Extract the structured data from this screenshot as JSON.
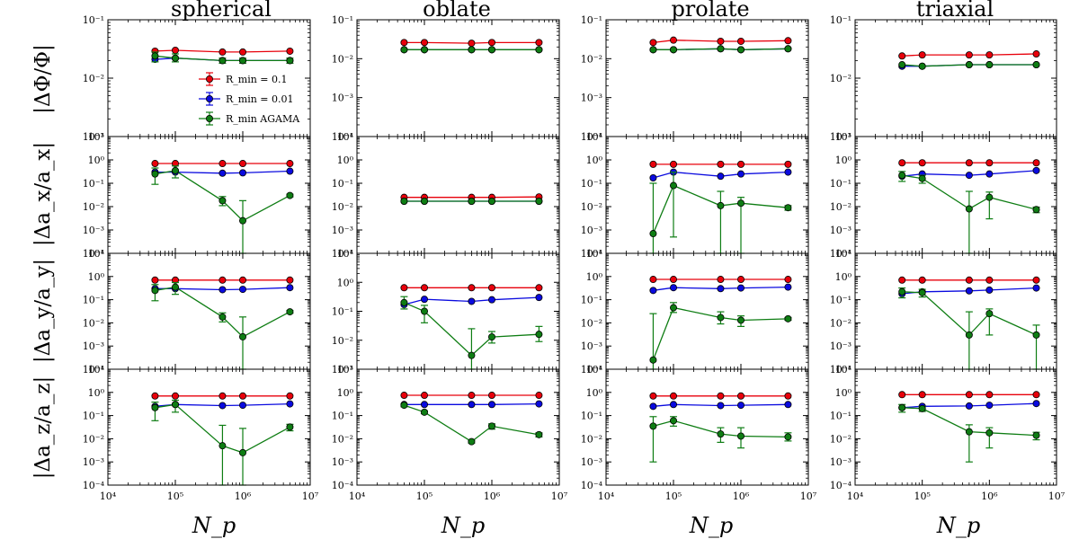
{
  "chart_data": {
    "type": "scatter",
    "columns": [
      "spherical",
      "oblate",
      "prolate",
      "triaxial"
    ],
    "row_labels": [
      "|ΔΦ/Φ|",
      "|Δa_x/a_x|",
      "|Δa_y/a_y|",
      "|Δa_z/a_z|"
    ],
    "xlabel": "N_p",
    "xscale": "log",
    "yscale": "log",
    "xlim": [
      10000,
      10000000
    ],
    "x": [
      50000,
      100000,
      500000,
      1000000,
      5000000
    ],
    "x_tick_labels": [
      "10^4",
      "10^5",
      "10^6",
      "10^7"
    ],
    "legend": [
      "R_min = 0.1",
      "R_min = 0.01",
      "R_min AGAMA"
    ],
    "series_colors": [
      "#e8000b",
      "#0a0adf",
      "#0e7d13"
    ],
    "panels": [
      [
        {
          "ylim_exp": [
            -3,
            -1
          ],
          "series": [
            {
              "name": "R_min = 0.1",
              "values": [
                0.029,
                0.03,
                0.028,
                0.028,
                0.029
              ]
            },
            {
              "name": "R_min = 0.01",
              "values": [
                0.021,
                0.022,
                0.02,
                0.02,
                0.02
              ]
            },
            {
              "name": "R_min AGAMA",
              "values": [
                0.024,
                0.022,
                0.02,
                0.02,
                0.02
              ],
              "err_low": [
                0.019,
                0.019,
                0.018,
                0.018,
                0.018
              ],
              "err_high": [
                0.028,
                0.026,
                0.022,
                0.022,
                0.022
              ]
            }
          ]
        },
        {
          "ylim_exp": [
            -4,
            -1
          ],
          "series": [
            {
              "name": "R_min = 0.1",
              "values": [
                0.026,
                0.026,
                0.025,
                0.026,
                0.026
              ]
            },
            {
              "name": "R_min = 0.01",
              "values": [
                0.017,
                0.017,
                0.017,
                0.017,
                0.017
              ]
            },
            {
              "name": "R_min AGAMA",
              "values": [
                0.017,
                0.017,
                0.017,
                0.017,
                0.017
              ]
            }
          ]
        },
        {
          "ylim_exp": [
            -4,
            -1
          ],
          "series": [
            {
              "name": "R_min = 0.1",
              "values": [
                0.026,
                0.03,
                0.028,
                0.028,
                0.029
              ]
            },
            {
              "name": "R_min = 0.01",
              "values": [
                0.017,
                0.017,
                0.018,
                0.017,
                0.018
              ]
            },
            {
              "name": "R_min AGAMA",
              "values": [
                0.017,
                0.017,
                0.018,
                0.017,
                0.018
              ]
            }
          ]
        },
        {
          "ylim_exp": [
            -3,
            -1
          ],
          "series": [
            {
              "name": "R_min = 0.1",
              "values": [
                0.024,
                0.025,
                0.025,
                0.025,
                0.026
              ]
            },
            {
              "name": "R_min = 0.01",
              "values": [
                0.016,
                0.016,
                0.017,
                0.017,
                0.017
              ]
            },
            {
              "name": "R_min AGAMA",
              "values": [
                0.017,
                0.016,
                0.017,
                0.017,
                0.017
              ]
            }
          ]
        }
      ],
      [
        {
          "ylim_exp": [
            -4,
            1
          ],
          "series": [
            {
              "name": "R_min = 0.1",
              "values": [
                0.7,
                0.7,
                0.7,
                0.7,
                0.7
              ]
            },
            {
              "name": "R_min = 0.01",
              "values": [
                0.3,
                0.3,
                0.27,
                0.28,
                0.33
              ]
            },
            {
              "name": "R_min AGAMA",
              "values": [
                0.25,
                0.35,
                0.018,
                0.0025,
                0.03
              ],
              "err_low": [
                0.09,
                0.17,
                0.011,
                0.0001,
                0.026
              ],
              "err_high": [
                0.45,
                0.55,
                0.027,
                0.018,
                0.034
              ]
            }
          ]
        },
        {
          "ylim_exp": [
            -4,
            1
          ],
          "series": [
            {
              "name": "R_min = 0.1",
              "values": [
                0.025,
                0.025,
                0.025,
                0.025,
                0.026
              ]
            },
            {
              "name": "R_min = 0.01",
              "values": [
                0.017,
                0.017,
                0.017,
                0.017,
                0.017
              ]
            },
            {
              "name": "R_min AGAMA",
              "values": [
                0.017,
                0.017,
                0.017,
                0.017,
                0.017
              ]
            }
          ]
        },
        {
          "ylim_exp": [
            -4,
            1
          ],
          "series": [
            {
              "name": "R_min = 0.1",
              "values": [
                0.65,
                0.65,
                0.65,
                0.65,
                0.65
              ]
            },
            {
              "name": "R_min = 0.01",
              "values": [
                0.17,
                0.3,
                0.2,
                0.25,
                0.3
              ]
            },
            {
              "name": "R_min AGAMA",
              "values": [
                0.0007,
                0.08,
                0.011,
                0.014,
                0.009
              ],
              "err_low": [
                0.0001,
                0.0005,
                0.0001,
                0.0001,
                0.007
              ],
              "err_high": [
                0.1,
                0.3,
                0.045,
                0.025,
                0.011
              ]
            }
          ]
        },
        {
          "ylim_exp": [
            -4,
            1
          ],
          "series": [
            {
              "name": "R_min = 0.1",
              "values": [
                0.75,
                0.75,
                0.75,
                0.75,
                0.75
              ]
            },
            {
              "name": "R_min = 0.01",
              "values": [
                0.2,
                0.25,
                0.22,
                0.25,
                0.35
              ]
            },
            {
              "name": "R_min AGAMA",
              "values": [
                0.22,
                0.16,
                0.008,
                0.025,
                0.0075
              ],
              "err_low": [
                0.12,
                0.1,
                0.0001,
                0.003,
                0.0055
              ],
              "err_high": [
                0.32,
                0.22,
                0.045,
                0.042,
                0.0095
              ]
            }
          ]
        }
      ],
      [
        {
          "ylim_exp": [
            -4,
            1
          ],
          "series": [
            {
              "name": "R_min = 0.1",
              "values": [
                0.7,
                0.7,
                0.7,
                0.7,
                0.7
              ]
            },
            {
              "name": "R_min = 0.01",
              "values": [
                0.3,
                0.3,
                0.27,
                0.28,
                0.33
              ]
            },
            {
              "name": "R_min AGAMA",
              "values": [
                0.25,
                0.35,
                0.018,
                0.0025,
                0.03
              ],
              "err_low": [
                0.09,
                0.17,
                0.011,
                0.0001,
                0.026
              ],
              "err_high": [
                0.45,
                0.55,
                0.027,
                0.018,
                0.034
              ]
            }
          ]
        },
        {
          "ylim_exp": [
            -3,
            1
          ],
          "series": [
            {
              "name": "R_min = 0.1",
              "values": [
                0.65,
                0.65,
                0.65,
                0.65,
                0.65
              ]
            },
            {
              "name": "R_min = 0.01",
              "values": [
                0.17,
                0.26,
                0.22,
                0.25,
                0.3
              ]
            },
            {
              "name": "R_min AGAMA",
              "values": [
                0.2,
                0.1,
                0.003,
                0.013,
                0.016
              ],
              "err_low": [
                0.12,
                0.04,
                0.0001,
                0.008,
                0.009
              ],
              "err_high": [
                0.32,
                0.16,
                0.025,
                0.02,
                0.03
              ]
            }
          ]
        },
        {
          "ylim_exp": [
            -4,
            1
          ],
          "series": [
            {
              "name": "R_min = 0.1",
              "values": [
                0.75,
                0.75,
                0.75,
                0.75,
                0.75
              ]
            },
            {
              "name": "R_min = 0.01",
              "values": [
                0.25,
                0.33,
                0.3,
                0.32,
                0.35
              ]
            },
            {
              "name": "R_min AGAMA",
              "values": [
                0.00025,
                0.045,
                0.017,
                0.013,
                0.015
              ],
              "err_low": [
                0.0001,
                0.028,
                0.009,
                0.007,
                0.013
              ],
              "err_high": [
                0.025,
                0.075,
                0.03,
                0.02,
                0.017
              ]
            }
          ]
        },
        {
          "ylim_exp": [
            -4,
            1
          ],
          "series": [
            {
              "name": "R_min = 0.1",
              "values": [
                0.7,
                0.7,
                0.7,
                0.7,
                0.7
              ]
            },
            {
              "name": "R_min = 0.01",
              "values": [
                0.18,
                0.22,
                0.24,
                0.26,
                0.32
              ]
            },
            {
              "name": "R_min AGAMA",
              "values": [
                0.22,
                0.2,
                0.003,
                0.025,
                0.003
              ],
              "err_low": [
                0.12,
                0.13,
                0.0001,
                0.003,
                0.0001
              ],
              "err_high": [
                0.32,
                0.28,
                0.03,
                0.04,
                0.008
              ]
            }
          ]
        }
      ],
      [
        {
          "ylim_exp": [
            -4,
            1
          ],
          "series": [
            {
              "name": "R_min = 0.1",
              "values": [
                0.7,
                0.7,
                0.7,
                0.7,
                0.7
              ]
            },
            {
              "name": "R_min = 0.01",
              "values": [
                0.25,
                0.3,
                0.27,
                0.28,
                0.32
              ]
            },
            {
              "name": "R_min AGAMA",
              "values": [
                0.22,
                0.3,
                0.005,
                0.0025,
                0.032
              ],
              "err_low": [
                0.06,
                0.14,
                0.0001,
                0.0001,
                0.022
              ],
              "err_high": [
                0.38,
                0.46,
                0.038,
                0.028,
                0.042
              ]
            }
          ]
        },
        {
          "ylim_exp": [
            -4,
            1
          ],
          "series": [
            {
              "name": "R_min = 0.1",
              "values": [
                0.75,
                0.75,
                0.75,
                0.75,
                0.75
              ]
            },
            {
              "name": "R_min = 0.01",
              "values": [
                0.3,
                0.3,
                0.3,
                0.3,
                0.32
              ]
            },
            {
              "name": "R_min AGAMA",
              "values": [
                0.28,
                0.14,
                0.0075,
                0.035,
                0.015
              ],
              "err_low": [
                0.24,
                0.12,
                0.0065,
                0.026,
                0.012
              ],
              "err_high": [
                0.32,
                0.16,
                0.0085,
                0.044,
                0.018
              ]
            }
          ]
        },
        {
          "ylim_exp": [
            -4,
            1
          ],
          "series": [
            {
              "name": "R_min = 0.1",
              "values": [
                0.7,
                0.7,
                0.7,
                0.7,
                0.7
              ]
            },
            {
              "name": "R_min = 0.01",
              "values": [
                0.25,
                0.3,
                0.27,
                0.28,
                0.3
              ]
            },
            {
              "name": "R_min AGAMA",
              "values": [
                0.035,
                0.06,
                0.016,
                0.013,
                0.012
              ],
              "err_low": [
                0.001,
                0.035,
                0.007,
                0.004,
                0.008
              ],
              "err_high": [
                0.09,
                0.09,
                0.03,
                0.03,
                0.018
              ]
            }
          ]
        },
        {
          "ylim_exp": [
            -4,
            1
          ],
          "series": [
            {
              "name": "R_min = 0.1",
              "values": [
                0.8,
                0.8,
                0.8,
                0.8,
                0.8
              ]
            },
            {
              "name": "R_min = 0.01",
              "values": [
                0.22,
                0.25,
                0.26,
                0.28,
                0.33
              ]
            },
            {
              "name": "R_min AGAMA",
              "values": [
                0.22,
                0.2,
                0.02,
                0.018,
                0.014
              ],
              "err_low": [
                0.14,
                0.15,
                0.001,
                0.004,
                0.009
              ],
              "err_high": [
                0.3,
                0.25,
                0.04,
                0.03,
                0.019
              ]
            }
          ]
        }
      ]
    ]
  }
}
